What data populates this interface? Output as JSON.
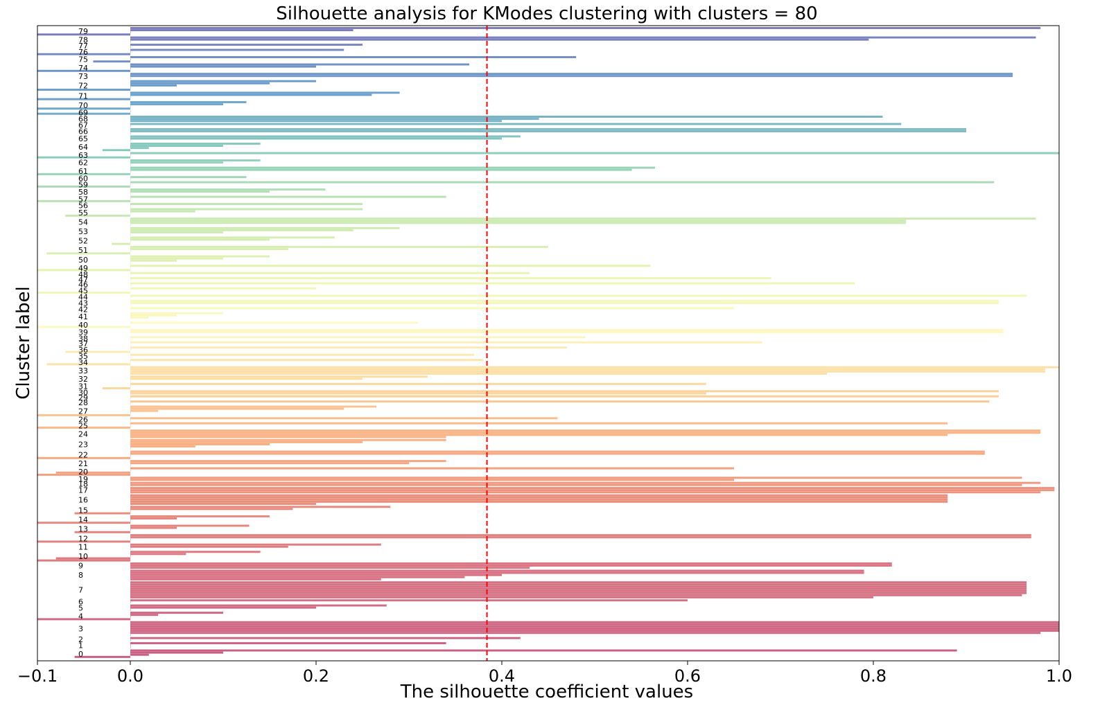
{
  "chart_data": {
    "type": "bar",
    "orientation": "horizontal",
    "title": "Silhouette analysis for KModes clustering with clusters = 80",
    "xlabel": "The silhouette coefficient values",
    "ylabel": "Cluster label",
    "xlim": [
      -0.1,
      1.0
    ],
    "xticks": [
      -0.1,
      0.0,
      0.2,
      0.4,
      0.6,
      0.8,
      1.0
    ],
    "xtick_labels": [
      "−0.1",
      "0.0",
      "0.2",
      "0.4",
      "0.6",
      "0.8",
      "1.0"
    ],
    "average_silhouette": 0.384,
    "average_line_color": "#ff0000",
    "colormap": "Spectral",
    "grid": false,
    "clusters": [
      {
        "label": "0",
        "values": [
          0.89,
          0.1,
          0.02,
          -0.06
        ]
      },
      {
        "label": "1",
        "values": [
          0.34,
          0.0,
          0.0
        ]
      },
      {
        "label": "2",
        "values": [
          0.42,
          0.0
        ]
      },
      {
        "label": "3",
        "values": [
          1.0,
          1.0,
          1.0,
          1.0,
          1.0,
          0.98,
          0.0
        ]
      },
      {
        "label": "4",
        "values": [
          0.1,
          0.03,
          0.0,
          -0.1
        ]
      },
      {
        "label": "5",
        "values": [
          0.276,
          0.2,
          0.0
        ]
      },
      {
        "label": "6",
        "values": [
          0.6,
          0.0
        ]
      },
      {
        "label": "7",
        "values": [
          0.965,
          0.965,
          0.965,
          0.965,
          0.965,
          0.965,
          0.96,
          0.8
        ]
      },
      {
        "label": "8",
        "values": [
          0.79,
          0.79,
          0.4,
          0.36,
          0.27
        ]
      },
      {
        "label": "9",
        "values": [
          0.82,
          0.82,
          0.43
        ]
      },
      {
        "label": "10",
        "values": [
          0.14,
          0.06,
          0.0,
          -0.08,
          -0.1
        ]
      },
      {
        "label": "11",
        "values": [
          0.27,
          0.17,
          0.0
        ]
      },
      {
        "label": "12",
        "values": [
          0.97,
          0.97,
          0.0,
          -0.1
        ]
      },
      {
        "label": "13",
        "values": [
          0.128,
          0.05,
          0.0,
          -0.06
        ]
      },
      {
        "label": "14",
        "values": [
          0.15,
          0.05,
          0.0,
          -0.1
        ]
      },
      {
        "label": "15",
        "values": [
          0.28,
          0.175,
          0.0,
          -0.06
        ]
      },
      {
        "label": "16",
        "values": [
          0.88,
          0.88,
          0.88,
          0.88,
          0.2
        ]
      },
      {
        "label": "17",
        "values": [
          0.995,
          0.995,
          0.98
        ]
      },
      {
        "label": "18",
        "values": [
          0.98,
          0.96
        ]
      },
      {
        "label": "19",
        "values": [
          0.96,
          0.65
        ]
      },
      {
        "label": "20",
        "values": [
          0.65,
          0.0,
          -0.08,
          -0.1
        ]
      },
      {
        "label": "21",
        "values": [
          0.34,
          0.3,
          0.0
        ]
      },
      {
        "label": "22",
        "values": [
          0.92,
          0.92,
          0.0,
          -0.1
        ]
      },
      {
        "label": "23",
        "values": [
          0.34,
          0.25,
          0.15,
          0.07,
          0.0
        ]
      },
      {
        "label": "24",
        "values": [
          0.98,
          0.98,
          0.88,
          0.34
        ]
      },
      {
        "label": "25",
        "values": [
          0.88,
          0.0,
          -0.1
        ]
      },
      {
        "label": "26",
        "values": [
          0.46,
          0.0
        ]
      },
      {
        "label": "27",
        "values": [
          0.265,
          0.23,
          0.03,
          0.0,
          -0.1
        ]
      },
      {
        "label": "28",
        "values": [
          0.925,
          0.0
        ]
      },
      {
        "label": "29",
        "values": [
          0.935,
          0.0
        ]
      },
      {
        "label": "30",
        "values": [
          0.935,
          0.62
        ]
      },
      {
        "label": "31",
        "values": [
          0.62,
          0.0,
          -0.03
        ]
      },
      {
        "label": "32",
        "values": [
          0.32,
          0.25,
          0.0
        ]
      },
      {
        "label": "33",
        "values": [
          1.0,
          0.985,
          0.985,
          0.75
        ]
      },
      {
        "label": "34",
        "values": [
          0.38,
          0.0,
          -0.09
        ]
      },
      {
        "label": "35",
        "values": [
          0.37,
          0.0
        ]
      },
      {
        "label": "36",
        "values": [
          0.47,
          0.0,
          -0.07
        ]
      },
      {
        "label": "37",
        "values": [
          0.68,
          0.0
        ]
      },
      {
        "label": "38",
        "values": [
          0.49,
          0.0
        ]
      },
      {
        "label": "39",
        "values": [
          0.94,
          0.94,
          0.0
        ]
      },
      {
        "label": "40",
        "values": [
          0.31,
          0.0,
          -0.1
        ]
      },
      {
        "label": "41",
        "values": [
          0.1,
          0.05,
          0.02,
          0.0
        ]
      },
      {
        "label": "42",
        "values": [
          0.65,
          0.0
        ]
      },
      {
        "label": "43",
        "values": [
          0.935,
          0.935,
          0.0
        ]
      },
      {
        "label": "44",
        "values": [
          0.965,
          0.0
        ]
      },
      {
        "label": "45",
        "values": [
          0.2,
          0.0,
          -0.1
        ]
      },
      {
        "label": "46",
        "values": [
          0.78,
          0.0
        ]
      },
      {
        "label": "47",
        "values": [
          0.69,
          0.0
        ]
      },
      {
        "label": "48",
        "values": [
          0.43,
          0.0
        ]
      },
      {
        "label": "49",
        "values": [
          0.56,
          0.0,
          -0.1
        ]
      },
      {
        "label": "50",
        "values": [
          0.15,
          0.1,
          0.05,
          0.0
        ]
      },
      {
        "label": "51",
        "values": [
          0.45,
          0.17,
          0.0,
          -0.09
        ]
      },
      {
        "label": "52",
        "values": [
          0.22,
          0.15,
          0.0,
          -0.02
        ]
      },
      {
        "label": "53",
        "values": [
          0.29,
          0.24,
          0.1,
          0.0
        ]
      },
      {
        "label": "54",
        "values": [
          0.975,
          0.835,
          0.835,
          0.0
        ]
      },
      {
        "label": "55",
        "values": [
          0.25,
          0.07,
          0.0,
          -0.07
        ]
      },
      {
        "label": "56",
        "values": [
          0.25,
          0.0
        ]
      },
      {
        "label": "57",
        "values": [
          0.34,
          0.0,
          -0.1
        ]
      },
      {
        "label": "58",
        "values": [
          0.21,
          0.15,
          0.0
        ]
      },
      {
        "label": "59",
        "values": [
          0.93,
          0.0,
          -0.1
        ]
      },
      {
        "label": "60",
        "values": [
          0.125,
          0.0
        ]
      },
      {
        "label": "61",
        "values": [
          0.565,
          0.54,
          0.0,
          -0.1
        ]
      },
      {
        "label": "62",
        "values": [
          0.14,
          0.1,
          0.0
        ]
      },
      {
        "label": "63",
        "values": [
          1.0,
          0.0,
          -0.1
        ]
      },
      {
        "label": "64",
        "values": [
          0.14,
          0.1,
          0.02,
          -0.03
        ]
      },
      {
        "label": "65",
        "values": [
          0.42,
          0.4,
          0.0
        ]
      },
      {
        "label": "66",
        "values": [
          0.9,
          0.9,
          0.0
        ]
      },
      {
        "label": "67",
        "values": [
          0.83,
          0.0
        ]
      },
      {
        "label": "68",
        "values": [
          0.81,
          0.44,
          0.4
        ]
      },
      {
        "label": "69",
        "values": [
          0.0,
          -0.1
        ]
      },
      {
        "label": "70",
        "values": [
          0.125,
          0.1,
          0.0,
          -0.1
        ]
      },
      {
        "label": "71",
        "values": [
          0.29,
          0.26,
          0.0,
          -0.1
        ]
      },
      {
        "label": "72",
        "values": [
          0.2,
          0.15,
          0.05,
          0.0,
          -0.1
        ]
      },
      {
        "label": "73",
        "values": [
          0.95,
          0.95,
          0.0
        ]
      },
      {
        "label": "74",
        "values": [
          0.365,
          0.2,
          0.0,
          -0.1
        ]
      },
      {
        "label": "75",
        "values": [
          0.48,
          0.0,
          -0.04
        ]
      },
      {
        "label": "76",
        "values": [
          0.23,
          0.0,
          -0.1
        ]
      },
      {
        "label": "77",
        "values": [
          0.25,
          0.0
        ]
      },
      {
        "label": "78",
        "values": [
          0.975,
          0.795,
          0.0
        ]
      },
      {
        "label": "79",
        "values": [
          0.98,
          0.24,
          0.0,
          -0.1
        ]
      }
    ]
  }
}
